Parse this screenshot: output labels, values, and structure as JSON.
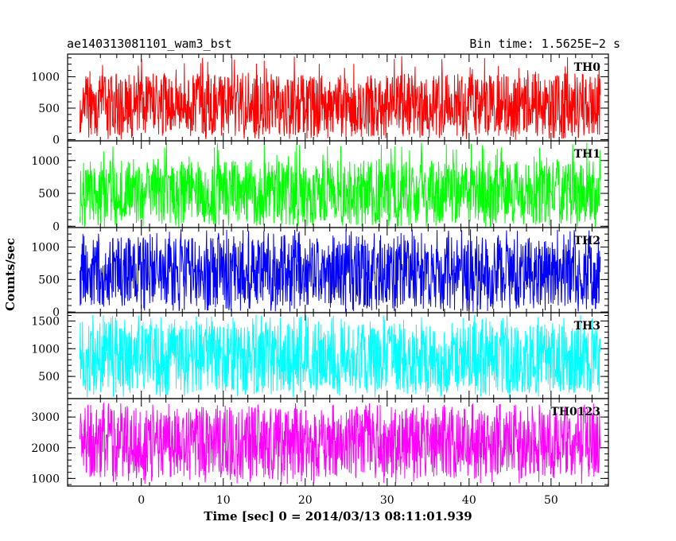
{
  "header": {
    "title": "ae140313081101_wam3_bst",
    "bin_time": "Bin time: 1.5625E−2 s"
  },
  "chart_data": {
    "type": "line",
    "xlabel": "Time [sec] 0 = 2014/03/13 08:11:01.939",
    "ylabel": "Counts/sec",
    "xlim": [
      -9,
      57
    ],
    "data_x_range": [
      -7.5,
      56
    ],
    "bin_time_s": 0.015625,
    "x_ticks": [
      0,
      10,
      20,
      30,
      40,
      50
    ],
    "x_tick_labels": [
      "0",
      "10",
      "20",
      "30",
      "40",
      "50"
    ],
    "panels": [
      {
        "name": "TH0",
        "color": "#ff0000",
        "ylim": [
          -20,
          1360
        ],
        "y_ticks": [
          0,
          500,
          1000
        ],
        "y_tick_labels": [
          "0",
          "500",
          "1000"
        ],
        "mean": 460,
        "low": 50,
        "high": 1050,
        "peak": 1340
      },
      {
        "name": "TH1",
        "color": "#00ff00",
        "ylim": [
          -20,
          1300
        ],
        "y_ticks": [
          0,
          500,
          1000
        ],
        "y_tick_labels": [
          "0",
          "500",
          "1000"
        ],
        "mean": 430,
        "low": 20,
        "high": 1000,
        "peak": 1280
      },
      {
        "name": "TH2",
        "color": "#0000ff",
        "ylim": [
          -10,
          1300
        ],
        "y_ticks": [
          0,
          500,
          1000
        ],
        "y_tick_labels": [
          "0",
          "500",
          "1000"
        ],
        "mean": 560,
        "low": 50,
        "high": 1150,
        "peak": 1280
      },
      {
        "name": "TH3",
        "color": "#00ffff",
        "ylim": [
          100,
          1650
        ],
        "y_ticks": [
          500,
          1000,
          1500
        ],
        "y_tick_labels": [
          "500",
          "1000",
          "1500"
        ],
        "mean": 800,
        "low": 200,
        "high": 1450,
        "peak": 1620
      },
      {
        "name": "TH0123",
        "color": "#ff00ff",
        "ylim": [
          750,
          3600
        ],
        "y_ticks": [
          1000,
          2000,
          3000
        ],
        "y_tick_labels": [
          "1000",
          "2000",
          "3000"
        ],
        "mean": 2250,
        "low": 1000,
        "high": 3300,
        "peak": 3450
      }
    ]
  }
}
